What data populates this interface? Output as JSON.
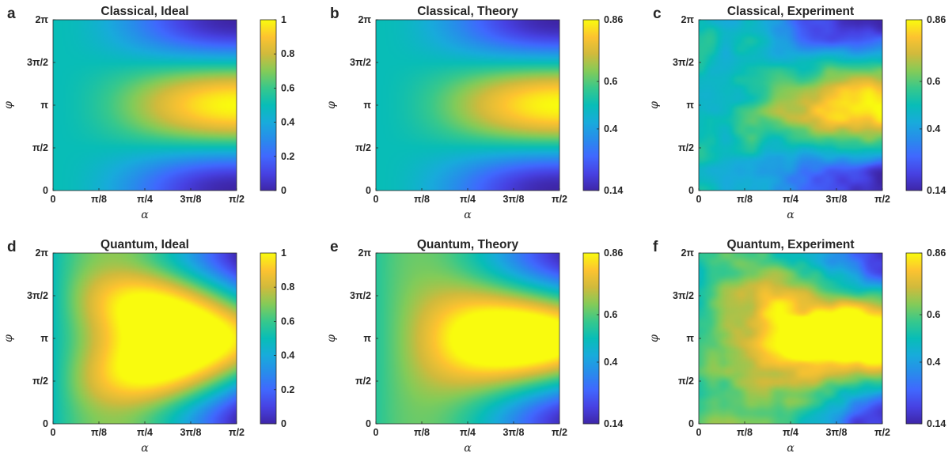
{
  "chart_data": [
    {
      "panel": "a",
      "title": "Classical, Ideal",
      "type": "heatmap",
      "xlabel": "α",
      "ylabel": "φ",
      "x_ticks": [
        "0",
        "π/8",
        "π/4",
        "3π/8",
        "π/2"
      ],
      "y_ticks": [
        "0",
        "π/2",
        "π",
        "3π/2",
        "2π"
      ],
      "colorbar": {
        "range": [
          0,
          1
        ],
        "ticks": [
          "0",
          "0.2",
          "0.4",
          "0.6",
          "0.8",
          "1"
        ]
      },
      "colormap": "parula",
      "field": "classical",
      "noise": false
    },
    {
      "panel": "b",
      "title": "Classical, Theory",
      "type": "heatmap",
      "xlabel": "α",
      "ylabel": "φ",
      "x_ticks": [
        "0",
        "π/8",
        "π/4",
        "3π/8",
        "π/2"
      ],
      "y_ticks": [
        "0",
        "π/2",
        "π",
        "3π/2",
        "2π"
      ],
      "colorbar": {
        "range": [
          0.14,
          0.86
        ],
        "ticks": [
          "0.14",
          "0.4",
          "0.6",
          "0.86"
        ]
      },
      "colormap": "parula",
      "field": "classical",
      "noise": false
    },
    {
      "panel": "c",
      "title": "Classical, Experiment",
      "type": "heatmap",
      "xlabel": "α",
      "ylabel": "φ",
      "x_ticks": [
        "0",
        "π/8",
        "π/4",
        "3π/8",
        "π/2"
      ],
      "y_ticks": [
        "0",
        "π/2",
        "π",
        "3π/2",
        "2π"
      ],
      "colorbar": {
        "range": [
          0.14,
          0.86
        ],
        "ticks": [
          "0.14",
          "0.4",
          "0.6",
          "0.86"
        ]
      },
      "colormap": "parula",
      "field": "classical",
      "noise": true
    },
    {
      "panel": "d",
      "title": "Quantum, Ideal",
      "type": "heatmap",
      "xlabel": "α",
      "ylabel": "φ",
      "x_ticks": [
        "0",
        "π/8",
        "π/4",
        "3π/8",
        "π/2"
      ],
      "y_ticks": [
        "0",
        "π/2",
        "π",
        "3π/2",
        "2π"
      ],
      "colorbar": {
        "range": [
          0,
          1
        ],
        "ticks": [
          "0",
          "0.2",
          "0.4",
          "0.6",
          "0.8",
          "1"
        ]
      },
      "colormap": "parula",
      "field": "quantum",
      "noise": false
    },
    {
      "panel": "e",
      "title": "Quantum, Theory",
      "type": "heatmap",
      "xlabel": "α",
      "ylabel": "φ",
      "x_ticks": [
        "0",
        "π/8",
        "π/4",
        "3π/8",
        "π/2"
      ],
      "y_ticks": [
        "0",
        "π/2",
        "π",
        "3π/2",
        "2π"
      ],
      "colorbar": {
        "range": [
          0.14,
          0.86
        ],
        "ticks": [
          "0.14",
          "0.4",
          "0.6",
          "0.86"
        ]
      },
      "colormap": "parula",
      "field": "quantum-theory",
      "noise": false
    },
    {
      "panel": "f",
      "title": "Quantum, Experiment",
      "type": "heatmap",
      "xlabel": "α",
      "ylabel": "φ",
      "x_ticks": [
        "0",
        "π/8",
        "π/4",
        "3π/8",
        "π/2"
      ],
      "y_ticks": [
        "0",
        "π/2",
        "π",
        "3π/2",
        "2π"
      ],
      "colorbar": {
        "range": [
          0.14,
          0.86
        ],
        "ticks": [
          "0.14",
          "0.4",
          "0.6",
          "0.86"
        ]
      },
      "colormap": "parula",
      "field": "quantum-theory",
      "noise": true
    }
  ]
}
